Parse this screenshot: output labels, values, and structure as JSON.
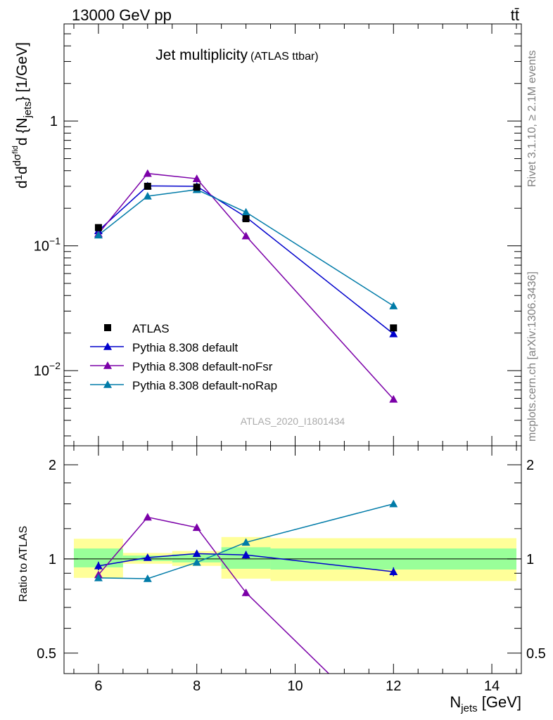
{
  "header": {
    "energy_label": "13000 GeV pp",
    "process_label": "tt̄"
  },
  "side_labels": {
    "rivet": "Rivet 3.1.10, ≥ 2.1M events",
    "mcplots": "mcplots.cern.ch [arXiv:1306.3436]"
  },
  "watermark": "ATLAS_2020_I1801434",
  "chart_data": [
    {
      "type": "line",
      "title": "Jet multiplicity",
      "subtitle": "(ATLAS ttbar)",
      "ylabel": "d(1/σ)dσ^fid/d{N_jets} [1/GeV]",
      "yscale": "log",
      "ylim": [
        0.0025,
        6
      ],
      "xlim": [
        5.3,
        14.6
      ],
      "yticks": [
        {
          "value": 1,
          "label": "1"
        },
        {
          "value": 0.1,
          "label": "10",
          "exp": "−1"
        },
        {
          "value": 0.01,
          "label": "10",
          "exp": "−2"
        }
      ],
      "legend_position": "bottom-left",
      "data_series": {
        "name": "ATLAS",
        "color": "#000000",
        "marker": "square",
        "x": [
          6,
          7,
          8,
          9,
          12
        ],
        "y": [
          0.14,
          0.3,
          0.295,
          0.165,
          0.022
        ]
      },
      "series": [
        {
          "name": "Pythia 8.308 default",
          "color": "#0000cc",
          "marker": "triangle",
          "x": [
            6,
            7,
            8,
            9,
            12
          ],
          "y": [
            0.132,
            0.302,
            0.3,
            0.17,
            0.0197
          ]
        },
        {
          "name": "Pythia 8.308 default-noFsr",
          "color": "#7b00a8",
          "marker": "triangle",
          "x": [
            6,
            7,
            8,
            9,
            12
          ],
          "y": [
            0.125,
            0.38,
            0.345,
            0.12,
            0.0059
          ]
        },
        {
          "name": "Pythia 8.308 default-noRap",
          "color": "#007ba8",
          "marker": "triangle",
          "x": [
            6,
            7,
            8,
            9,
            12
          ],
          "y": [
            0.122,
            0.25,
            0.282,
            0.186,
            0.033
          ]
        }
      ]
    },
    {
      "type": "line",
      "ylabel": "Ratio to ATLAS",
      "xlabel": "N_jets [GeV]",
      "yscale": "log",
      "ylim": [
        0.43,
        2.3
      ],
      "xlim": [
        5.3,
        14.6
      ],
      "xticks": [
        6,
        8,
        10,
        12,
        14
      ],
      "yticks": [
        {
          "value": 0.5,
          "label": "0.5"
        },
        {
          "value": 1,
          "label": "1"
        },
        {
          "value": 2,
          "label": "2"
        }
      ],
      "uncertainty_bands": [
        {
          "x0": 5.5,
          "x1": 6.5,
          "inner": [
            0.94,
            1.08
          ],
          "outer": [
            0.87,
            1.16
          ]
        },
        {
          "x0": 6.5,
          "x1": 7.5,
          "inner": [
            0.985,
            1.025
          ],
          "outer": [
            0.965,
            1.045
          ]
        },
        {
          "x0": 7.5,
          "x1": 8.5,
          "inner": [
            0.975,
            1.035
          ],
          "outer": [
            0.95,
            1.06
          ]
        },
        {
          "x0": 8.5,
          "x1": 9.5,
          "inner": [
            0.93,
            1.09
          ],
          "outer": [
            0.865,
            1.175
          ]
        },
        {
          "x0": 9.5,
          "x1": 14.5,
          "inner": [
            0.925,
            1.08
          ],
          "outer": [
            0.85,
            1.165
          ]
        }
      ],
      "series": [
        {
          "name": "Pythia 8.308 default",
          "color": "#0000cc",
          "x": [
            6,
            7,
            8,
            9,
            12
          ],
          "y": [
            0.95,
            1.01,
            1.04,
            1.03,
            0.91
          ],
          "err": [
            0.03,
            0.02,
            0.02,
            0.03,
            0.03
          ]
        },
        {
          "name": "Pythia 8.308 default-noFsr",
          "color": "#7b00a8",
          "x": [
            6,
            7,
            8,
            9,
            12
          ],
          "y": [
            0.89,
            1.36,
            1.26,
            0.78,
            0.27
          ],
          "err": [
            0.02,
            0.02,
            0.02,
            0.02,
            0.02
          ]
        },
        {
          "name": "Pythia 8.308 default-noRap",
          "color": "#007ba8",
          "x": [
            6,
            7,
            8,
            9,
            12
          ],
          "y": [
            0.87,
            0.865,
            0.975,
            1.13,
            1.5
          ],
          "err": [
            0.02,
            0.01,
            0.01,
            0.02,
            0.03
          ]
        }
      ]
    }
  ]
}
